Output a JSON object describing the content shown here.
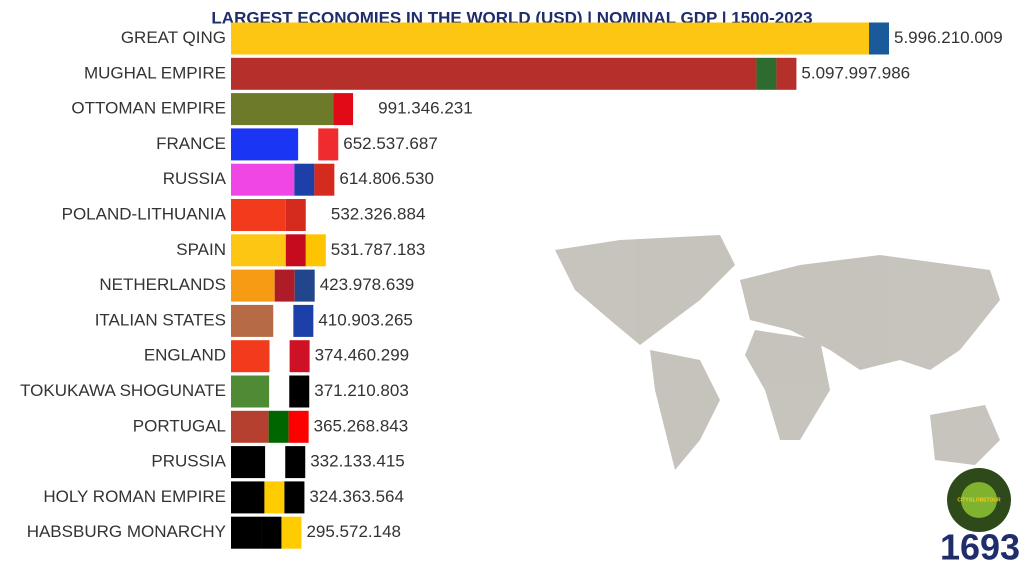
{
  "chart_data": {
    "type": "bar",
    "orientation": "horizontal",
    "title": "LARGEST ECONOMIES IN THE WORLD (USD) | NOMINAL GDP | 1500-2023",
    "year": "1693",
    "logo": "CITYGLOBETOUR",
    "categories": [
      "GREAT QING",
      "MUGHAL EMPIRE",
      "OTTOMAN EMPIRE",
      "FRANCE",
      "RUSSIA",
      "POLAND-LITHUANIA",
      "SPAIN",
      "NETHERLANDS",
      "ITALIAN STATES",
      "ENGLAND",
      "TOKUKAWA SHOGUNATE",
      "PORTUGAL",
      "PRUSSIA",
      "HOLY ROMAN EMPIRE",
      "HABSBURG MONARCHY"
    ],
    "values": [
      5996210009,
      5097997986,
      991346231,
      652537687,
      614806530,
      532326884,
      531787183,
      423978639,
      410903265,
      374460299,
      371210803,
      365268843,
      332133415,
      324363564,
      295572148
    ],
    "value_labels": [
      "5.996.210.009",
      "5.097.997.986",
      "991.346.231",
      "652.537.687",
      "614.806.530",
      "532.326.884",
      "531.787.183",
      "423.978.639",
      "410.903.265",
      "374.460.299",
      "371.210.803",
      "365.268.843",
      "332.133.415",
      "324.363.564",
      "295.572.148"
    ],
    "colors": [
      "#fdc613",
      "#b5302a",
      "#6d7a2a",
      "#1b35f5",
      "#f146e6",
      "#f23a1c",
      "#fdc613",
      "#f79a14",
      "#b66b45",
      "#f23a1c",
      "#4f8a35",
      "#b5402f",
      "#000000",
      "#000000",
      "#000000"
    ]
  }
}
